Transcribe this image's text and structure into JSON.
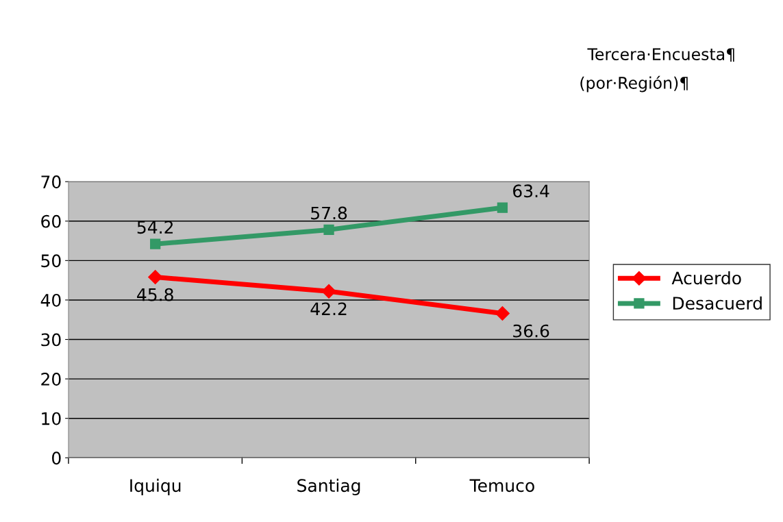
{
  "chart_data": {
    "type": "line",
    "title": "Tercera·Encuesta¶",
    "subtitle": "(por·Región)¶",
    "categories": [
      "Iquiqu",
      "Santiag",
      "Temuco"
    ],
    "series": [
      {
        "name": "Acuerdo",
        "color": "#ff0000",
        "values": [
          45.8,
          42.2,
          36.6
        ],
        "marker": "diamond"
      },
      {
        "name": "Desacuerd",
        "color": "#339966",
        "values": [
          54.2,
          57.8,
          63.4
        ],
        "marker": "square"
      }
    ],
    "ylim": [
      0,
      70
    ],
    "yticks": [
      0,
      10,
      20,
      30,
      40,
      50,
      60,
      70
    ],
    "grid": "y",
    "legend": "right",
    "data_labels": true,
    "line_style": "solid"
  }
}
